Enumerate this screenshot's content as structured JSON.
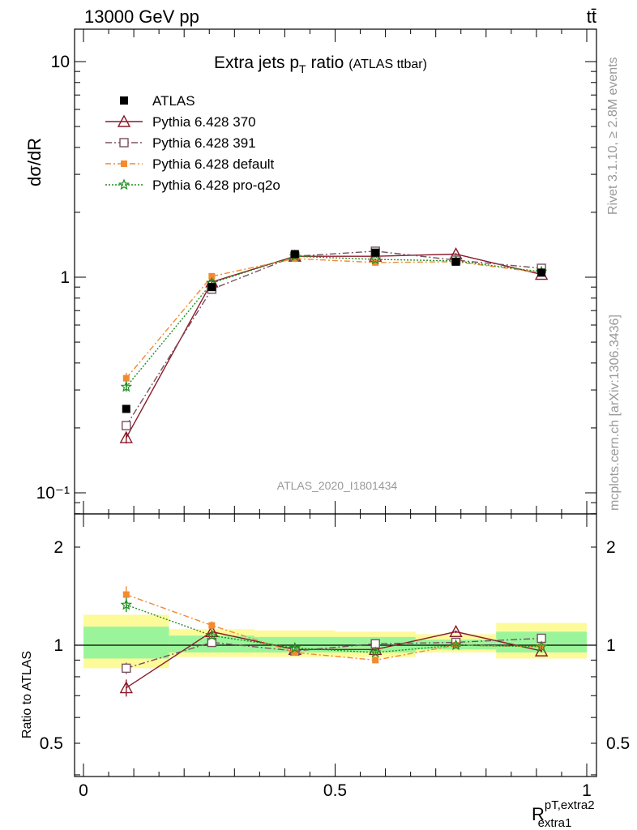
{
  "header": {
    "left": "13000 GeV pp",
    "right": "tt̄"
  },
  "side_labels": {
    "rivet": "Rivet 3.1.10, ≥ 2.8M events",
    "mcplots": "mcplots.cern.ch [arXiv:1306.3436]"
  },
  "chart_data": {
    "type": "line",
    "title": "Extra jets p",
    "title_sub": "T",
    "title_tail": " ratio",
    "title_paren": "(ATLAS ttbar)",
    "analysis_label": "ATLAS_2020_I1801434",
    "ylabel_main": "dσ/dR",
    "ylabel_ratio": "Ratio to ATLAS",
    "xlabel": "R",
    "xlabel_sup": "pT,extra2",
    "xlabel_sub": "extra1",
    "xlim": [
      0,
      1
    ],
    "ylim_main": [
      0.08,
      14
    ],
    "ylim_ratio": [
      0.4,
      2.3
    ],
    "log_y": true,
    "x_ticks": [
      "0",
      "0.5",
      "1"
    ],
    "y_ticks_main": [
      "10⁻¹",
      "1",
      "10"
    ],
    "y_ticks_ratio": [
      "0.5",
      "1",
      "2"
    ],
    "bin_edges": [
      0,
      0.17,
      0.34,
      0.5,
      0.66,
      0.82,
      1.0
    ],
    "x": [
      0.085,
      0.255,
      0.42,
      0.58,
      0.74,
      0.91
    ],
    "data": {
      "name": "ATLAS",
      "values": [
        0.245,
        0.9,
        1.28,
        1.3,
        1.18,
        1.05
      ]
    },
    "band_yellow": [
      [
        0.85,
        1.24
      ],
      [
        0.92,
        1.12
      ],
      [
        0.92,
        1.11
      ],
      [
        0.92,
        1.1
      ],
      [
        0.95,
        1.08
      ],
      [
        0.91,
        1.17
      ]
    ],
    "band_green": [
      [
        0.91,
        1.14
      ],
      [
        0.95,
        1.07
      ],
      [
        0.95,
        1.06
      ],
      [
        0.95,
        1.06
      ],
      [
        0.97,
        1.04
      ],
      [
        0.95,
        1.1
      ]
    ],
    "series": [
      {
        "name": "Pythia 6.428 370",
        "color": "#8b1a2b",
        "dash": "",
        "marker": "triangle",
        "values": [
          0.18,
          0.95,
          1.25,
          1.25,
          1.28,
          1.03
        ],
        "ratio": [
          0.74,
          1.1,
          0.97,
          0.97,
          1.1,
          0.96
        ],
        "err": [
          0.06,
          0.02,
          0.01,
          0.01,
          0.01,
          0.01
        ]
      },
      {
        "name": "Pythia 6.428 391",
        "color": "#7a5060",
        "dash": "8,3,2,3",
        "marker": "square-open",
        "values": [
          0.205,
          0.88,
          1.25,
          1.32,
          1.2,
          1.1
        ],
        "ratio": [
          0.85,
          1.02,
          0.96,
          1.01,
          1.02,
          1.05
        ],
        "err": [
          0.04,
          0.03,
          0.01,
          0.01,
          0.01,
          0.01
        ]
      },
      {
        "name": "Pythia 6.428 default",
        "color": "#f28a30",
        "dash": "7,3,2,3",
        "marker": "square-filled",
        "values": [
          0.34,
          1.01,
          1.22,
          1.17,
          1.18,
          1.05
        ],
        "ratio": [
          1.43,
          1.15,
          0.95,
          0.9,
          1.0,
          0.99
        ],
        "err": [
          0.06,
          0.03,
          0.01,
          0.02,
          0.01,
          0.01
        ]
      },
      {
        "name": "Pythia 6.428 pro-q2o",
        "color": "#1f8f1f",
        "dash": "2,2",
        "marker": "star",
        "values": [
          0.31,
          0.94,
          1.25,
          1.21,
          1.19,
          1.06
        ],
        "ratio": [
          1.33,
          1.07,
          0.98,
          0.95,
          1.0,
          0.99
        ],
        "err": [
          0.05,
          0.02,
          0.01,
          0.01,
          0.01,
          0.01
        ]
      }
    ]
  }
}
